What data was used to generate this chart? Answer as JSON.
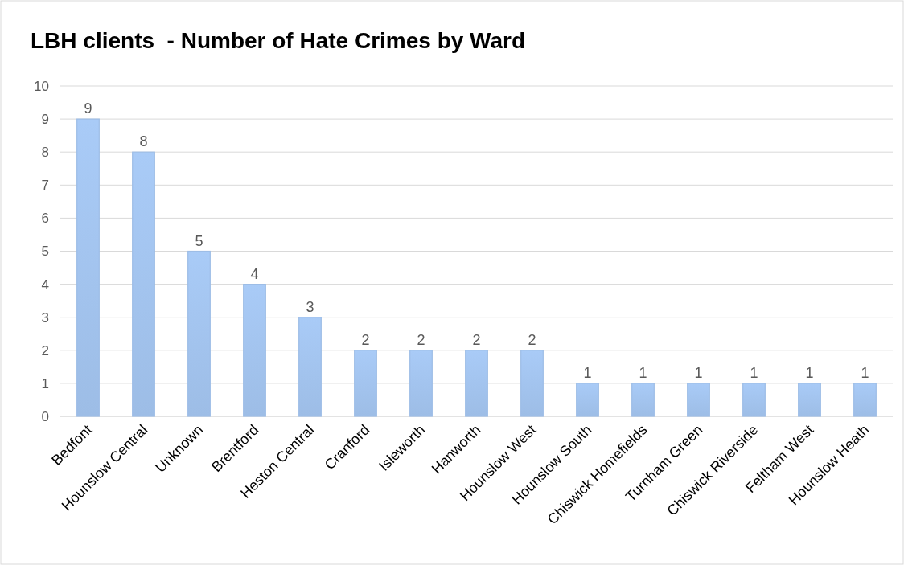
{
  "chart_data": {
    "type": "bar",
    "title": "LBH clients  - Number of Hate Crimes by Ward",
    "categories": [
      "Bedfont",
      "Hounslow Central",
      "Unknown",
      "Brentford",
      "Heston Central",
      "Cranford",
      "Isleworth",
      "Hanworth",
      "Hounslow West",
      "Hounslow South",
      "Chiswick Homefields",
      "Turnham Green",
      "Chiswick Riverside",
      "Feltham West",
      "Hounslow Heath"
    ],
    "values": [
      9,
      8,
      5,
      4,
      3,
      2,
      2,
      2,
      2,
      1,
      1,
      1,
      1,
      1,
      1
    ],
    "color": "#9dbde6",
    "ylim": [
      0,
      10
    ],
    "yticks": [
      0,
      1,
      2,
      3,
      4,
      5,
      6,
      7,
      8,
      9,
      10
    ],
    "grid": "y",
    "data_labels": true
  }
}
